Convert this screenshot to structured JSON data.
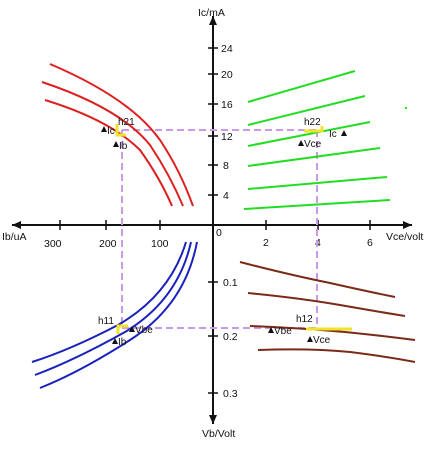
{
  "axes": {
    "ic_label": "Ic/mA",
    "ib_label": "Ib/uA",
    "vce_label": "Vce/volt",
    "vb_label": "Vb/Volt",
    "origin": "0"
  },
  "ticks": {
    "ic": [
      "4",
      "8",
      "12",
      "16",
      "20",
      "24"
    ],
    "vce": [
      "2",
      "4",
      "6"
    ],
    "ib": [
      "100",
      "200",
      "300"
    ],
    "vb": [
      "0.1",
      "0.2",
      "0.3"
    ]
  },
  "annotations": {
    "h21": "h21",
    "h21_ic": "Ic",
    "h21_ib": "Ib",
    "h22": "h22",
    "h22_ic": "Ic",
    "h22_vce": "Vce",
    "h11": "h11",
    "h11_vbe": "Vbe",
    "h11_ib": "Ib",
    "h12": "h12",
    "h12_vbe": "Vbe",
    "h12_vce": "Vce"
  },
  "colors": {
    "q1": "#22dd22",
    "q2": "#dd2020",
    "q3": "#1a22bb",
    "q4": "#7a2a18",
    "guide": "#c99ae6",
    "highlight": "#f2e22a",
    "axis": "#111111"
  }
}
